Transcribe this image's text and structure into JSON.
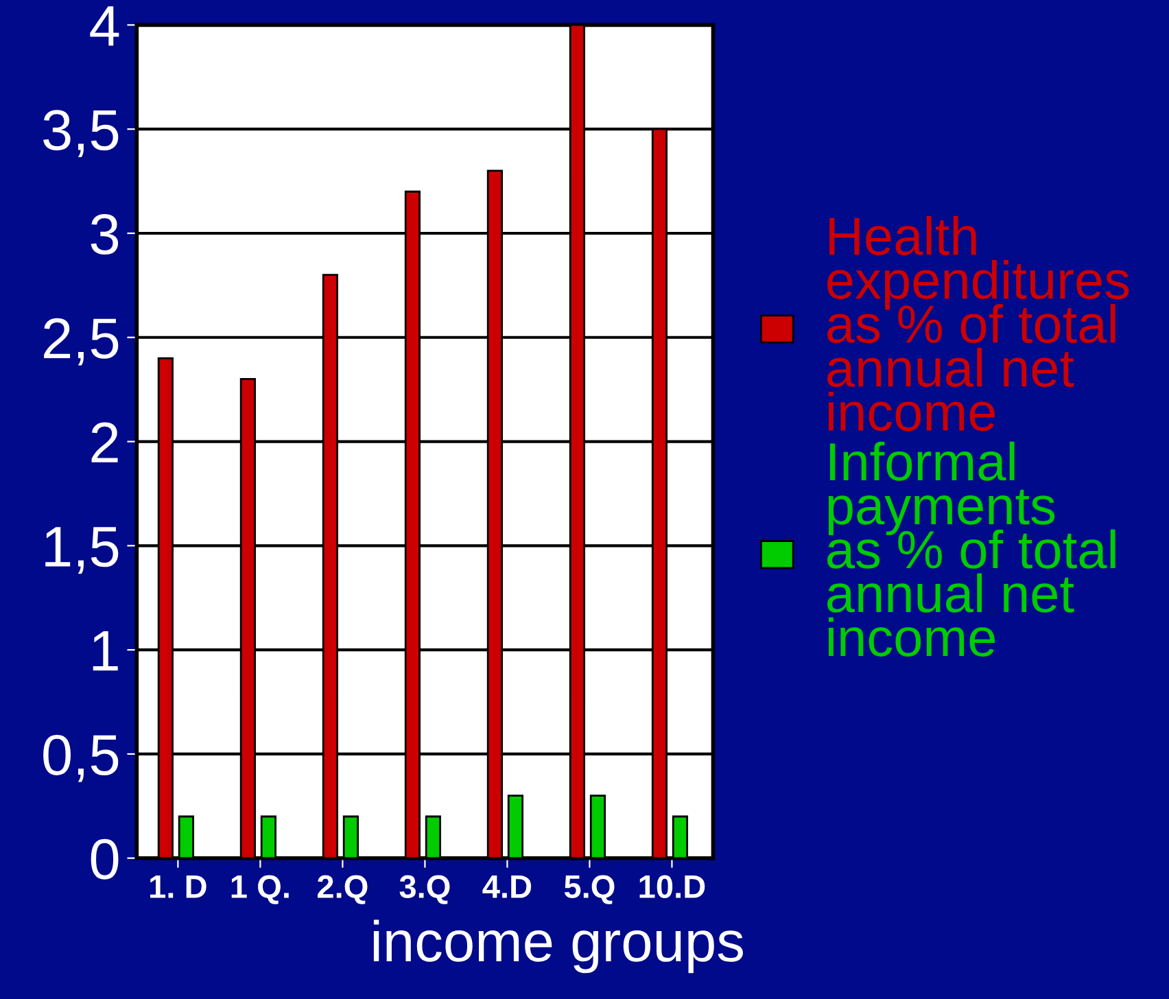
{
  "chart_data": {
    "type": "bar",
    "xlabel": "income groups",
    "categories": [
      "1. D",
      "1 Q.",
      "2.Q",
      "3.Q",
      "4.D",
      "5.Q",
      "10.D"
    ],
    "series": [
      {
        "name": "Health\nexpenditures\nas % of total\nannual net\nincome",
        "color": "#cc0000",
        "values": [
          2.4,
          2.3,
          2.8,
          3.2,
          3.3,
          4.0,
          3.5
        ]
      },
      {
        "name": "Informal\npayments\nas % of total\nannual net\nincome",
        "color": "#00cc00",
        "values": [
          0.2,
          0.2,
          0.2,
          0.2,
          0.3,
          0.3,
          0.2
        ]
      }
    ],
    "ylim": [
      0,
      4
    ],
    "yticks": [
      0,
      {
        "value": 0.5,
        "label": "0,5"
      },
      1,
      {
        "value": 1.5,
        "label": "1,5"
      },
      2,
      {
        "value": 2.5,
        "label": "2,5"
      },
      3,
      {
        "value": 3.5,
        "label": "3,5"
      },
      4
    ],
    "grid": "y",
    "legend": "right"
  }
}
